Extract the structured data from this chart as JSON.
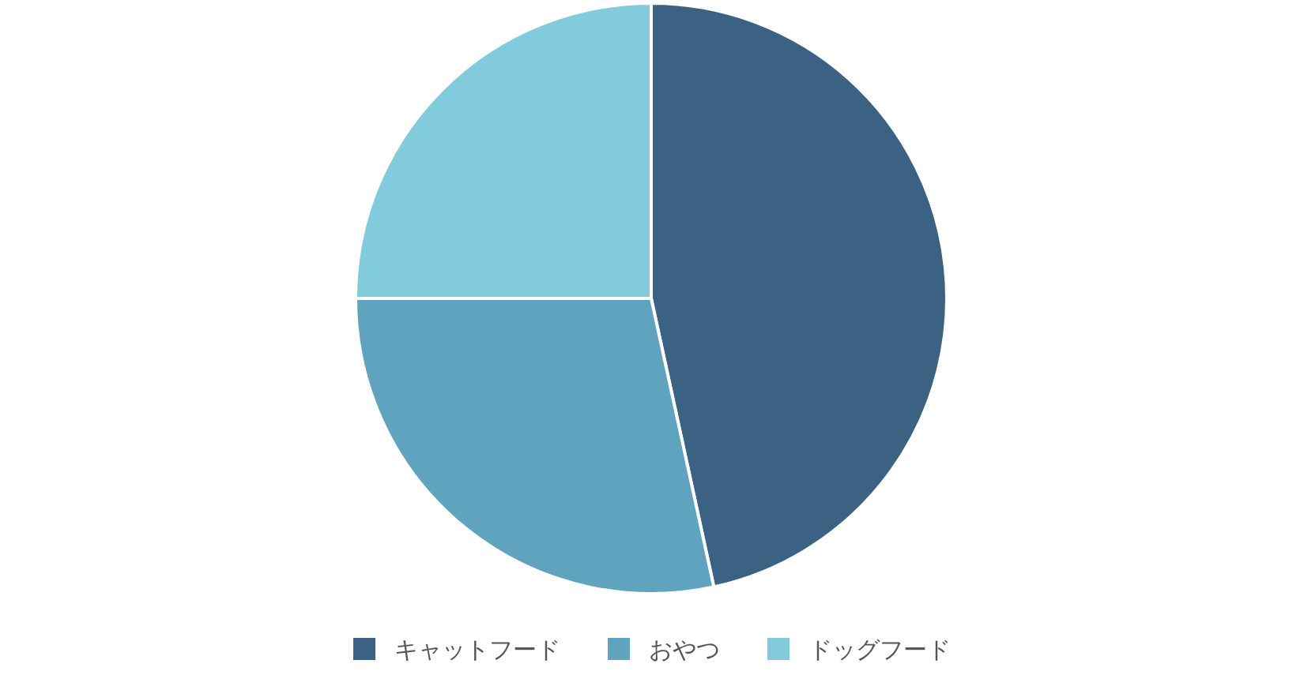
{
  "chart_data": {
    "type": "pie",
    "categories": [
      "キャットフード",
      "おやつ",
      "ドッグフード"
    ],
    "values": [
      46.6,
      28.4,
      25
    ],
    "colors": [
      "#3b6282",
      "#5fa3bf",
      "#82cbdc"
    ],
    "legend": "bottom"
  }
}
